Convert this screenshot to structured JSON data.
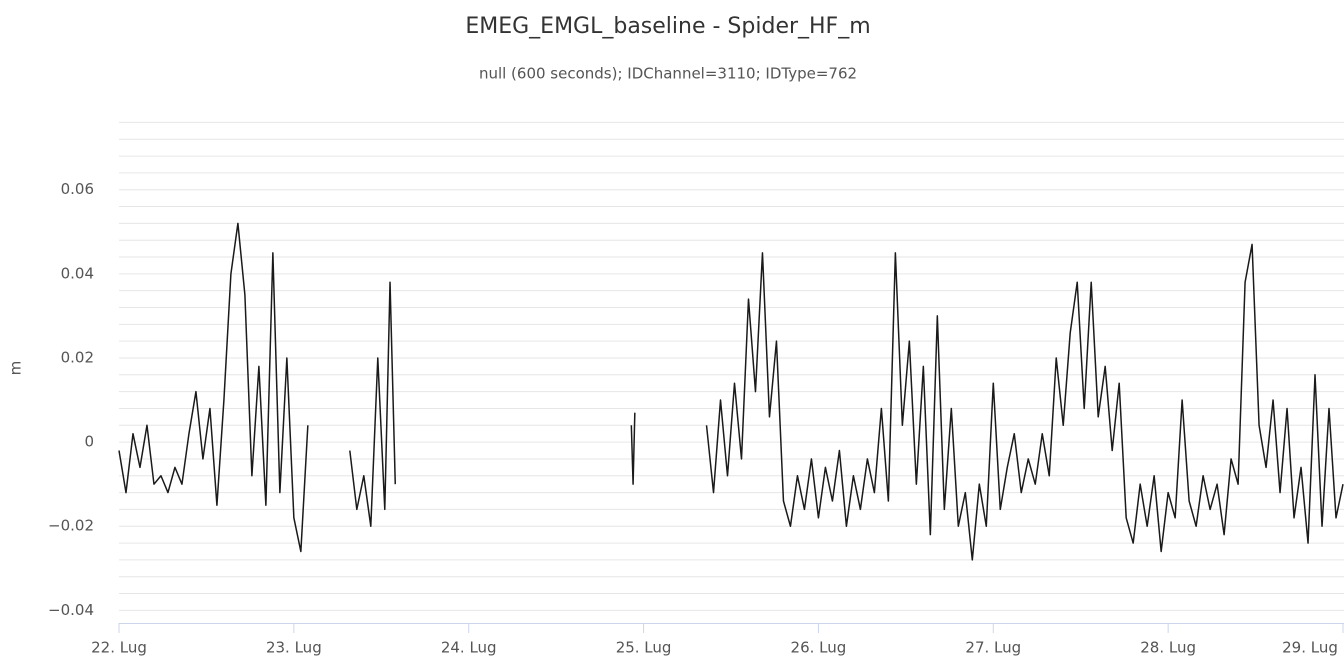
{
  "chart_data": {
    "type": "line",
    "title": "EMEG_EMGL_baseline - Spider_HF_m",
    "subtitle": "null (600 seconds); IDChannel=3110; IDType=762",
    "y_label": "m",
    "xlim": [
      22,
      29
    ],
    "xticks": [
      {
        "value": 22,
        "label": "22. Lug"
      },
      {
        "value": 23,
        "label": "23. Lug"
      },
      {
        "value": 24,
        "label": "24. Lug"
      },
      {
        "value": 25,
        "label": "25. Lug"
      },
      {
        "value": 26,
        "label": "26. Lug"
      },
      {
        "value": 27,
        "label": "27. Lug"
      },
      {
        "value": 28,
        "label": "28. Lug"
      },
      {
        "value": 29,
        "label": "29. Lug"
      }
    ],
    "ylim": [
      -0.043,
      0.078
    ],
    "yticks": [
      {
        "value": -0.04,
        "label": "−0.04"
      },
      {
        "value": -0.02,
        "label": "−0.02"
      },
      0,
      0.02,
      0.04,
      0.06
    ],
    "y_minor_ticks": [
      -0.04,
      -0.036,
      -0.032,
      -0.028,
      -0.024,
      -0.02,
      -0.016,
      -0.012,
      -0.008,
      -0.004,
      0,
      0.004,
      0.008,
      0.012,
      0.016,
      0.02,
      0.024,
      0.028,
      0.032,
      0.036,
      0.04,
      0.044,
      0.048,
      0.052,
      0.056,
      0.06,
      0.064,
      0.068,
      0.072,
      0.076
    ],
    "grid": true,
    "x": [
      22,
      22.04,
      22.08,
      22.12,
      22.16,
      22.2,
      22.24,
      22.28,
      22.32,
      22.36,
      22.4,
      22.44,
      22.48,
      22.52,
      22.56,
      22.6,
      22.64,
      22.68,
      22.72,
      22.76,
      22.8,
      22.84,
      22.88,
      22.92,
      22.96,
      23,
      23.04,
      23.08,
      23.2,
      23.32,
      23.36,
      23.4,
      23.44,
      23.48,
      23.52,
      23.55,
      23.58,
      24.2,
      24.93,
      24.94,
      24.95,
      25.1,
      25.36,
      25.4,
      25.44,
      25.48,
      25.52,
      25.56,
      25.6,
      25.64,
      25.68,
      25.72,
      25.76,
      25.8,
      25.84,
      25.88,
      25.92,
      25.96,
      26,
      26.04,
      26.08,
      26.12,
      26.16,
      26.2,
      26.24,
      26.28,
      26.32,
      26.36,
      26.4,
      26.44,
      26.48,
      26.52,
      26.56,
      26.6,
      26.64,
      26.68,
      26.72,
      26.76,
      26.8,
      26.84,
      26.88,
      26.92,
      26.96,
      27,
      27.04,
      27.08,
      27.12,
      27.16,
      27.2,
      27.24,
      27.28,
      27.32,
      27.36,
      27.4,
      27.44,
      27.48,
      27.52,
      27.56,
      27.6,
      27.64,
      27.68,
      27.72,
      27.76,
      27.8,
      27.84,
      27.88,
      27.92,
      27.96,
      28,
      28.04,
      28.08,
      28.12,
      28.16,
      28.2,
      28.24,
      28.28,
      28.32,
      28.36,
      28.4,
      28.44,
      28.48,
      28.52,
      28.56,
      28.6,
      28.64,
      28.68,
      28.72,
      28.76,
      28.8,
      28.84,
      28.88,
      28.92,
      28.96,
      29
    ],
    "series": [
      {
        "name": "Spider_HF_m",
        "color": "#1a1a1a",
        "values": [
          -0.002,
          -0.012,
          0.002,
          -0.006,
          0.004,
          -0.01,
          -0.008,
          -0.012,
          -0.006,
          -0.01,
          0.002,
          0.012,
          -0.004,
          0.008,
          -0.015,
          0.01,
          0.04,
          0.052,
          0.035,
          -0.008,
          0.018,
          -0.015,
          0.045,
          -0.012,
          0.02,
          -0.018,
          -0.026,
          0.004,
          null,
          -0.002,
          -0.016,
          -0.008,
          -0.02,
          0.02,
          -0.016,
          0.038,
          -0.01,
          null,
          0.004,
          -0.01,
          0.007,
          null,
          0.004,
          -0.012,
          0.01,
          -0.008,
          0.014,
          -0.004,
          0.034,
          0.012,
          0.045,
          0.006,
          0.024,
          -0.014,
          -0.02,
          -0.008,
          -0.016,
          -0.004,
          -0.018,
          -0.006,
          -0.014,
          -0.002,
          -0.02,
          -0.008,
          -0.016,
          -0.004,
          -0.012,
          0.008,
          -0.014,
          0.045,
          0.004,
          0.024,
          -0.01,
          0.018,
          -0.022,
          0.03,
          -0.016,
          0.008,
          -0.02,
          -0.012,
          -0.028,
          -0.01,
          -0.02,
          0.014,
          -0.016,
          -0.006,
          0.002,
          -0.012,
          -0.004,
          -0.01,
          0.002,
          -0.008,
          0.02,
          0.004,
          0.026,
          0.038,
          0.008,
          0.038,
          0.006,
          0.018,
          -0.002,
          0.014,
          -0.018,
          -0.024,
          -0.01,
          -0.02,
          -0.008,
          -0.026,
          -0.012,
          -0.018,
          0.01,
          -0.014,
          -0.02,
          -0.008,
          -0.016,
          -0.01,
          -0.022,
          -0.004,
          -0.01,
          0.038,
          0.047,
          0.004,
          -0.006,
          0.01,
          -0.012,
          0.008,
          -0.018,
          -0.006,
          -0.024,
          0.016,
          -0.02,
          0.008,
          -0.018,
          -0.01
        ]
      }
    ]
  }
}
